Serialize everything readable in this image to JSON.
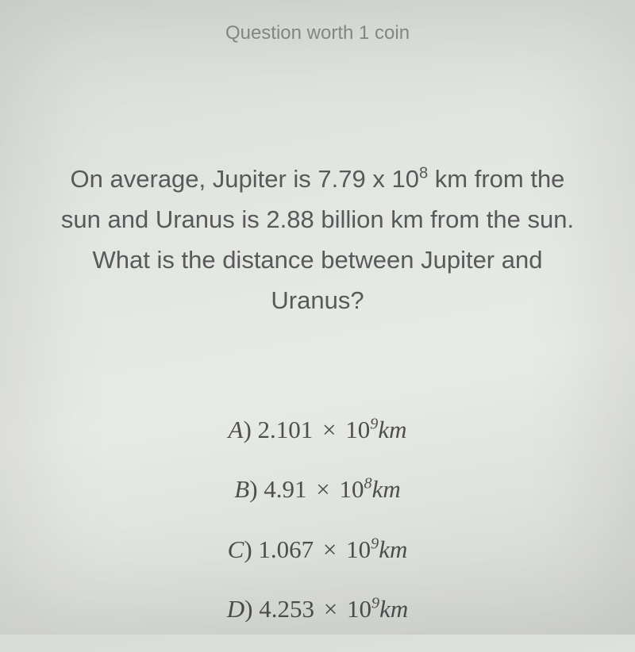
{
  "header": {
    "text": "Question worth 1 coin"
  },
  "question": {
    "line1_pre": "On average, Jupiter is 7.79 x 10",
    "line1_sup": "8",
    "line1_post": " km from the",
    "line2": "sun and Uranus is 2.88 billion km from the sun.",
    "line3": "What is the distance between Jupiter and",
    "line4": "Uranus?"
  },
  "options": {
    "a": {
      "label": "A",
      "coeff": "2.101",
      "exp": "9"
    },
    "b": {
      "label": "B",
      "coeff": "4.91",
      "exp": "8"
    },
    "c": {
      "label": "C",
      "coeff": "1.067",
      "exp": "9"
    },
    "d": {
      "label": "D",
      "coeff": "4.253",
      "exp": "9"
    }
  },
  "colors": {
    "background_top": "#d8dcd8",
    "background_mid": "#e8eae5",
    "header_text": "#888a86",
    "question_text": "#58595a",
    "option_text": "#4d4e4f"
  }
}
